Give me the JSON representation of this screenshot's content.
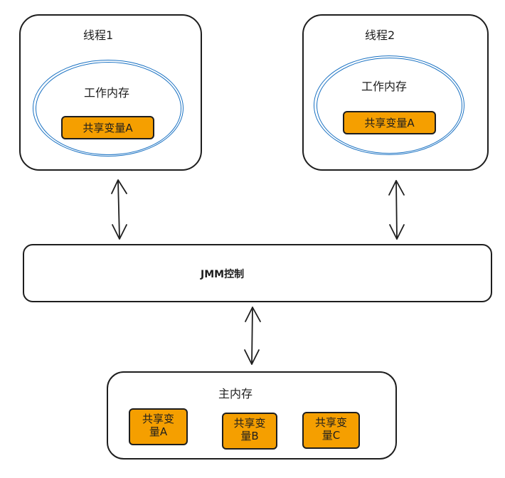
{
  "colors": {
    "stroke": "#1e1e1e",
    "ellipse": "#1971c2",
    "variable_fill": "#f59f00"
  },
  "thread1": {
    "title": "线程1",
    "working_memory": "工作内存",
    "variable": "共享变量A"
  },
  "thread2": {
    "title": "线程2",
    "working_memory": "工作内存",
    "variable": "共享变量A"
  },
  "jmm": {
    "label": "JMM控制"
  },
  "main_memory": {
    "title": "主内存",
    "variables": [
      {
        "line1": "共享变",
        "line2": "量A"
      },
      {
        "line1": "共享变",
        "line2": "量B"
      },
      {
        "line1": "共享变",
        "line2": "量C"
      }
    ]
  }
}
